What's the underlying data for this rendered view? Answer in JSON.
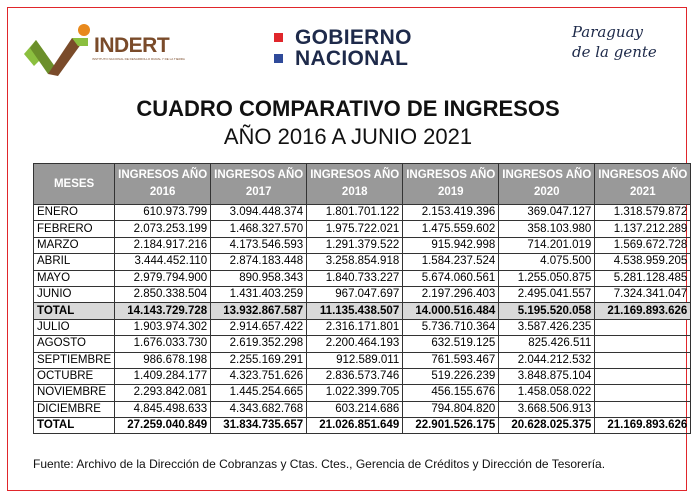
{
  "logos": {
    "indert": {
      "name": "INDERT",
      "subtitle": "INSTITUTO NACIONAL DE DESARROLLO RURAL Y DE LA TIERRA"
    },
    "gobierno": {
      "line1": "GOBIERNO",
      "line2": "NACIONAL",
      "colors": [
        "#e0262b",
        "#2f4a9a"
      ]
    },
    "paraguay": {
      "line1": "Paraguay",
      "line2": "de la gente"
    }
  },
  "title": "CUADRO COMPARATIVO DE INGRESOS",
  "subtitle": "AÑO 2016 A JUNIO 2021",
  "table": {
    "headers": [
      "MESES",
      "INGRESOS AÑO 2016",
      "INGRESOS AÑO 2017",
      "INGRESOS AÑO 2018",
      "INGRESOS AÑO 2019",
      "INGRESOS AÑO 2020",
      "INGRESOS AÑO 2021"
    ],
    "rows": [
      [
        "ENERO",
        "610.973.799",
        "3.094.448.374",
        "1.801.701.122",
        "2.153.419.396",
        "369.047.127",
        "1.318.579.872"
      ],
      [
        "FEBRERO",
        "2.073.253.199",
        "1.468.327.570",
        "1.975.722.021",
        "1.475.559.602",
        "358.103.980",
        "1.137.212.289"
      ],
      [
        "MARZO",
        "2.184.917.216",
        "4.173.546.593",
        "1.291.379.522",
        "915.942.998",
        "714.201.019",
        "1.569.672.728"
      ],
      [
        "ABRIL",
        "3.444.452.110",
        "2.874.183.448",
        "3.258.854.918",
        "1.584.237.524",
        "4.075.500",
        "4.538.959.205"
      ],
      [
        "MAYO",
        "2.979.794.900",
        "890.958.343",
        "1.840.733.227",
        "5.674.060.561",
        "1.255.050.875",
        "5.281.128.485"
      ],
      [
        "JUNIO",
        "2.850.338.504",
        "1.431.403.259",
        "967.047.697",
        "2.197.296.403",
        "2.495.041.557",
        "7.324.341.047"
      ],
      [
        "TOTAL",
        "14.143.729.728",
        "13.932.867.587",
        "11.135.438.507",
        "14.000.516.484",
        "5.195.520.058",
        "21.169.893.626"
      ],
      [
        "JULIO",
        "1.903.974.302",
        "2.914.657.422",
        "2.316.171.801",
        "5.736.710.364",
        "3.587.426.235",
        ""
      ],
      [
        "AGOSTO",
        "1.676.033.730",
        "2.619.352.298",
        "2.200.464.193",
        "632.519.125",
        "825.426.511",
        ""
      ],
      [
        "SEPTIEMBRE",
        "986.678.198",
        "2.255.169.291",
        "912.589.011",
        "761.593.467",
        "2.044.212.532",
        ""
      ],
      [
        "OCTUBRE",
        "1.409.284.177",
        "4.323.751.626",
        "2.836.573.746",
        "519.226.239",
        "3.848.875.104",
        ""
      ],
      [
        "NOVIEMBRE",
        "2.293.842.081",
        "1.445.254.665",
        "1.022.399.705",
        "456.155.676",
        "1.458.058.022",
        ""
      ],
      [
        "DICIEMBRE",
        "4.845.498.633",
        "4.343.682.768",
        "603.214.686",
        "794.804.820",
        "3.668.506.913",
        ""
      ],
      [
        "TOTAL",
        "27.259.040.849",
        "31.834.735.657",
        "21.026.851.649",
        "22.901.526.175",
        "20.628.025.375",
        "21.169.893.626"
      ]
    ]
  },
  "footer": "Fuente: Archivo de la Dirección de Cobranzas y Ctas. Ctes., Gerencia de Créditos y Dirección de Tesorería."
}
